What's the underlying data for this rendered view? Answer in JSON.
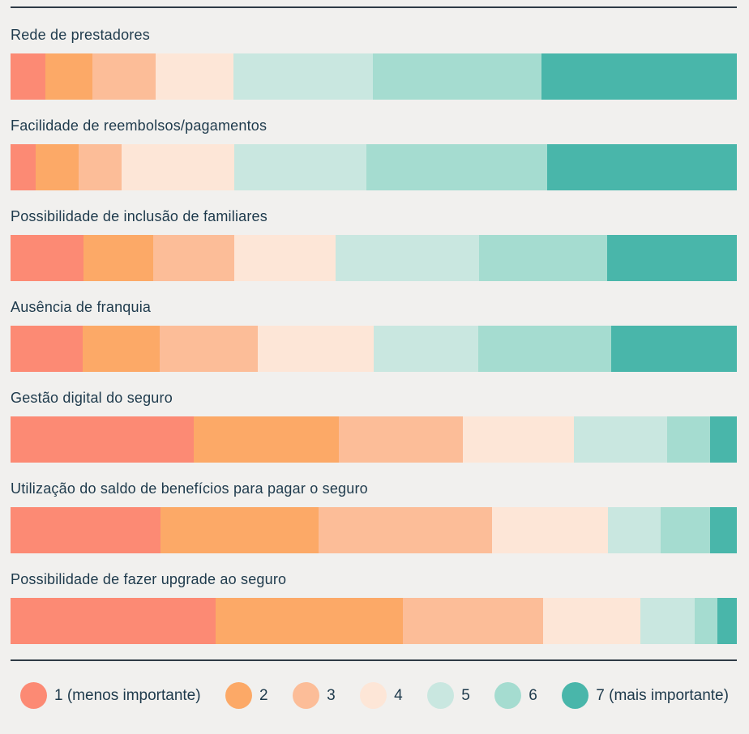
{
  "page": {
    "background": "#F1F0EE",
    "text_color": "#1E3A4C",
    "divider_color": "#2F3B46"
  },
  "chart_data": {
    "type": "bar",
    "variant": "stacked-horizontal-100percent",
    "title": "",
    "xlabel": "",
    "ylabel": "",
    "xlim": [
      0,
      100
    ],
    "grid": false,
    "value_unit": "percent (estimated from segment widths)",
    "legend_position": "bottom",
    "categories": [
      "Rede de prestadores",
      "Facilidade de reembolsos/pagamentos",
      "Possibilidade de inclusão de familiares",
      "Ausência de franquia",
      "Gestão digital do seguro",
      "Utilização do saldo de benefícios para pagar o seguro",
      "Possibilidade de fazer upgrade ao seguro"
    ],
    "series": [
      {
        "name": "1 (menos importante)",
        "color": "#FC8A74",
        "values": [
          4.8,
          3.4,
          10.1,
          9.9,
          25.2,
          20.6,
          28.2
        ]
      },
      {
        "name": "2",
        "color": "#FCA967",
        "values": [
          6.5,
          6.0,
          9.6,
          10.6,
          20.0,
          21.8,
          25.8
        ]
      },
      {
        "name": "3",
        "color": "#FCBD98",
        "values": [
          8.7,
          5.9,
          11.2,
          13.5,
          17.0,
          23.9,
          19.3
        ]
      },
      {
        "name": "4",
        "color": "#FDE6D7",
        "values": [
          10.7,
          15.5,
          13.9,
          16.0,
          15.3,
          15.9,
          13.4
        ]
      },
      {
        "name": "5",
        "color": "#C9E7E0",
        "values": [
          19.2,
          18.2,
          19.8,
          14.3,
          12.8,
          7.3,
          7.5
        ]
      },
      {
        "name": "6",
        "color": "#A5DCD0",
        "values": [
          23.2,
          24.8,
          17.7,
          18.3,
          5.9,
          6.8,
          3.1
        ]
      },
      {
        "name": "7 (mais importante)",
        "color": "#49B6AA",
        "values": [
          26.9,
          26.1,
          17.9,
          17.3,
          3.7,
          3.7,
          2.7
        ]
      }
    ]
  }
}
